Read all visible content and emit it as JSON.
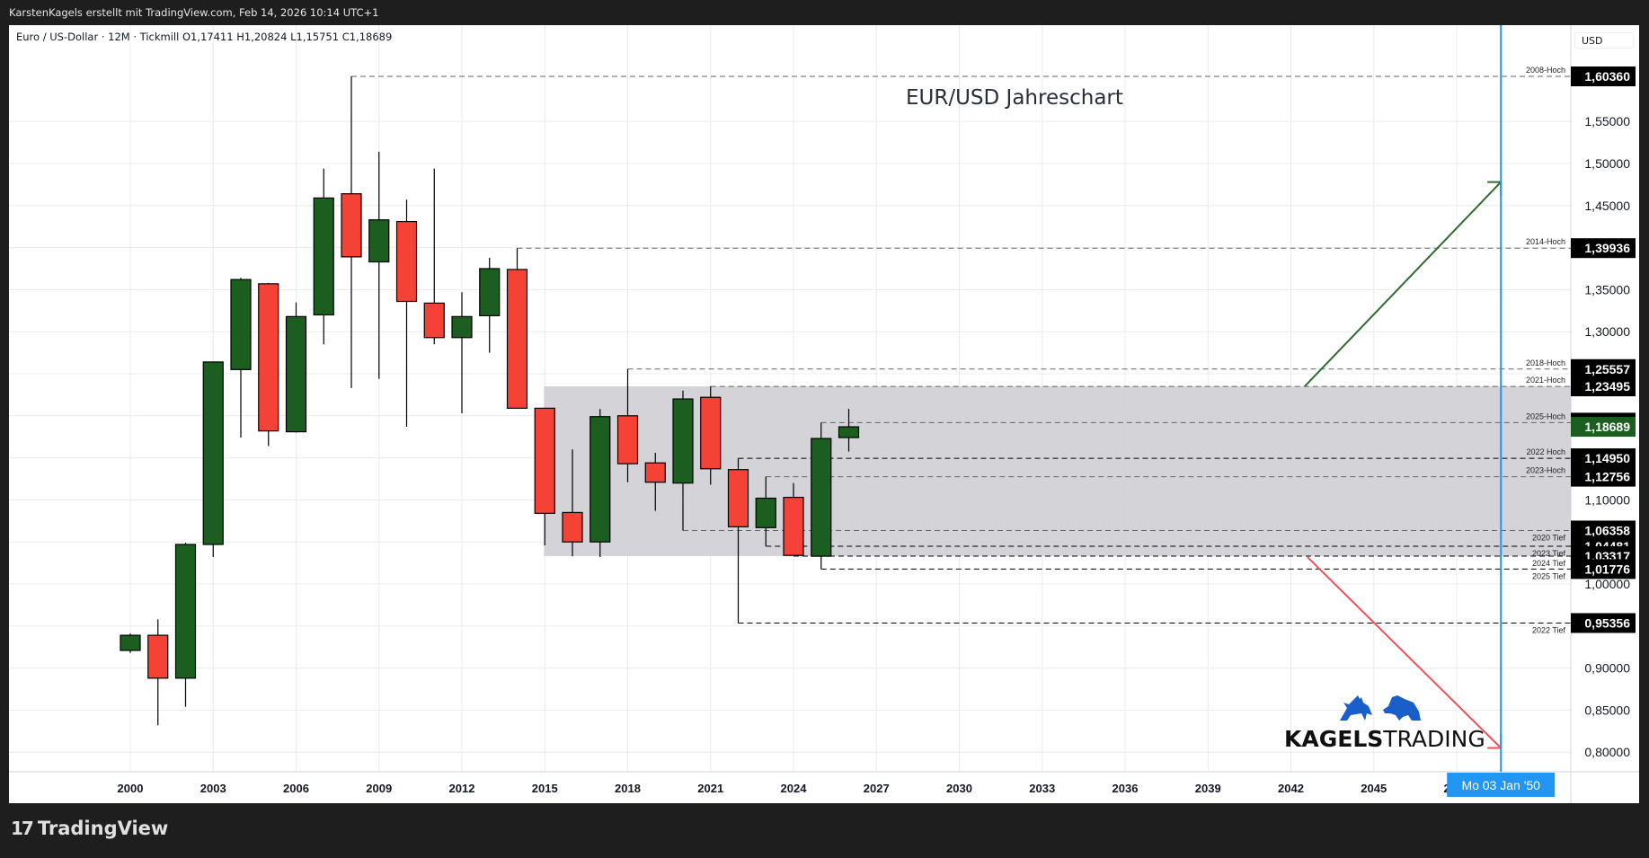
{
  "header": {
    "credit": "KarstenKagels erstellt mit TradingView.com, Feb 14, 2026 10:14 UTC+1",
    "legend": "Euro / US-Dollar · 12M · Tickmill  O1,17411  H1,20824  L1,15751  C1,18689"
  },
  "annotation_title": "EUR/USD Jahreschart",
  "currency_label": "USD",
  "footer": {
    "logo_text": "TradingView",
    "logo_mark": "17"
  },
  "watermark": {
    "bold": "KAGELS",
    "light": "TRADING"
  },
  "crosshair_time_label": "Mo 03 Jan '50",
  "colors": {
    "up": "#1b5e20",
    "down": "#f44336",
    "zone": "#d1d1d6",
    "crosshair": "#2196f3",
    "arrow_up": "#2e6b2e",
    "arrow_down": "#f0525a",
    "last_price_bg": "#1b5e20"
  },
  "chart_data": {
    "type": "candlestick",
    "title": "EUR/USD Jahreschart",
    "symbol": "Euro / US-Dollar",
    "interval": "12M",
    "broker": "Tickmill",
    "ylabel": "USD",
    "ylim": [
      0.785,
      1.655
    ],
    "xlim": [
      1998,
      2051
    ],
    "grid": true,
    "x_ticks": [
      "2000",
      "2003",
      "2006",
      "2009",
      "2012",
      "2015",
      "2018",
      "2021",
      "2024",
      "2027",
      "2030",
      "2033",
      "2036",
      "2039",
      "2042",
      "2045",
      "2048"
    ],
    "y_ticks": [
      "1,55000",
      "1,50000",
      "1,45000",
      "1,40000",
      "1,35000",
      "1,30000",
      "1,25000",
      "1,20000",
      "1,15000",
      "1,10000",
      "1,05000",
      "1,00000",
      "0,95000",
      "0,90000",
      "0,85000",
      "0,80000"
    ],
    "y_tick_values": [
      1.55,
      1.5,
      1.45,
      1.4,
      1.35,
      1.3,
      1.25,
      1.2,
      1.15,
      1.1,
      1.05,
      1.0,
      0.95,
      0.9,
      0.85,
      0.8
    ],
    "candles": [
      {
        "year": 2000,
        "o": 0.921,
        "h": 0.941,
        "l": 0.918,
        "c": 0.939
      },
      {
        "year": 2001,
        "o": 0.939,
        "h": 0.958,
        "l": 0.832,
        "c": 0.888
      },
      {
        "year": 2002,
        "o": 0.888,
        "h": 1.049,
        "l": 0.854,
        "c": 1.047
      },
      {
        "year": 2003,
        "o": 1.047,
        "h": 1.264,
        "l": 1.032,
        "c": 1.264
      },
      {
        "year": 2004,
        "o": 1.255,
        "h": 1.364,
        "l": 1.174,
        "c": 1.362
      },
      {
        "year": 2005,
        "o": 1.357,
        "h": 1.358,
        "l": 1.164,
        "c": 1.182
      },
      {
        "year": 2006,
        "o": 1.181,
        "h": 1.335,
        "l": 1.18,
        "c": 1.318
      },
      {
        "year": 2007,
        "o": 1.32,
        "h": 1.494,
        "l": 1.285,
        "c": 1.459
      },
      {
        "year": 2008,
        "o": 1.464,
        "h": 1.6036,
        "l": 1.233,
        "c": 1.389
      },
      {
        "year": 2009,
        "o": 1.383,
        "h": 1.514,
        "l": 1.244,
        "c": 1.433
      },
      {
        "year": 2010,
        "o": 1.431,
        "h": 1.457,
        "l": 1.187,
        "c": 1.336
      },
      {
        "year": 2011,
        "o": 1.334,
        "h": 1.494,
        "l": 1.285,
        "c": 1.293
      },
      {
        "year": 2012,
        "o": 1.293,
        "h": 1.347,
        "l": 1.203,
        "c": 1.318
      },
      {
        "year": 2013,
        "o": 1.319,
        "h": 1.388,
        "l": 1.275,
        "c": 1.375
      },
      {
        "year": 2014,
        "o": 1.374,
        "h": 1.39936,
        "l": 1.209,
        "c": 1.209
      },
      {
        "year": 2015,
        "o": 1.209,
        "h": 1.209,
        "l": 1.046,
        "c": 1.084
      },
      {
        "year": 2016,
        "o": 1.085,
        "h": 1.16,
        "l": 1.033,
        "c": 1.05
      },
      {
        "year": 2017,
        "o": 1.05,
        "h": 1.208,
        "l": 1.032,
        "c": 1.199
      },
      {
        "year": 2018,
        "o": 1.2,
        "h": 1.25557,
        "l": 1.121,
        "c": 1.143
      },
      {
        "year": 2019,
        "o": 1.144,
        "h": 1.156,
        "l": 1.087,
        "c": 1.121
      },
      {
        "year": 2020,
        "o": 1.12,
        "h": 1.23,
        "l": 1.06358,
        "c": 1.22
      },
      {
        "year": 2021,
        "o": 1.222,
        "h": 1.23495,
        "l": 1.118,
        "c": 1.137
      },
      {
        "year": 2022,
        "o": 1.136,
        "h": 1.1495,
        "l": 0.95356,
        "c": 1.068
      },
      {
        "year": 2023,
        "o": 1.067,
        "h": 1.12756,
        "l": 1.04481,
        "c": 1.102
      },
      {
        "year": 2024,
        "o": 1.103,
        "h": 1.12,
        "l": 1.03317,
        "c": 1.034
      },
      {
        "year": 2025,
        "o": 1.033,
        "h": 1.19188,
        "l": 1.01776,
        "c": 1.173
      },
      {
        "year": 2026,
        "o": 1.17411,
        "h": 1.20824,
        "l": 1.15751,
        "c": 1.18689
      }
    ],
    "levels": [
      {
        "label": "2008-Hoch",
        "price": 1.6036,
        "value": "1,60360",
        "from_year": 2008,
        "style": "gray"
      },
      {
        "label": "2014-Hoch",
        "price": 1.39936,
        "value": "1,39936",
        "from_year": 2014,
        "style": "gray"
      },
      {
        "label": "2018-Hoch",
        "price": 1.25557,
        "value": "1,25557",
        "from_year": 2018,
        "style": "gray"
      },
      {
        "label": "2021-Hoch",
        "price": 1.23495,
        "value": "1,23495",
        "from_year": 2021,
        "style": "gray"
      },
      {
        "label": "2025-Hoch",
        "price": 1.19188,
        "value": "1,19188",
        "from_year": 2025,
        "style": "gray"
      },
      {
        "label": "2022 Hoch",
        "price": 1.1495,
        "value": "1,14950",
        "from_year": 2022,
        "style": "black"
      },
      {
        "label": "2023-Hoch",
        "price": 1.12756,
        "value": "1,12756",
        "from_year": 2023,
        "style": "gray"
      },
      {
        "label": "2020 Tief",
        "price": 1.06358,
        "value": "1,06358",
        "from_year": 2020,
        "style": "gray"
      },
      {
        "label": "2023 Tief",
        "price": 1.04481,
        "value": "1,04481",
        "from_year": 2023,
        "style": "black"
      },
      {
        "label": "2024 Tief",
        "price": 1.03317,
        "value": "1,03317",
        "from_year": 2024,
        "style": "black"
      },
      {
        "label": "2025 Tief",
        "price": 1.01776,
        "value": "1,01776",
        "from_year": 2025,
        "style": "black"
      },
      {
        "label": "2022 Tief",
        "price": 0.95356,
        "value": "0,95356",
        "from_year": 2022,
        "style": "black"
      }
    ],
    "last_price": {
      "price": 1.18689,
      "value": "1,18689"
    },
    "zone": {
      "from_year": 2014.97,
      "top": 1.23495,
      "bottom": 1.03317
    },
    "arrows": [
      {
        "name": "bullish-arrow",
        "from": [
          2042.5,
          1.23495
        ],
        "to": [
          2049.6,
          1.478
        ]
      },
      {
        "name": "bearish-arrow",
        "from": [
          2042.6,
          1.032
        ],
        "to": [
          2049.6,
          0.805
        ]
      }
    ],
    "crosshair_year": 2049.6,
    "crosshair_label": "Mo 03 Jan '50"
  }
}
